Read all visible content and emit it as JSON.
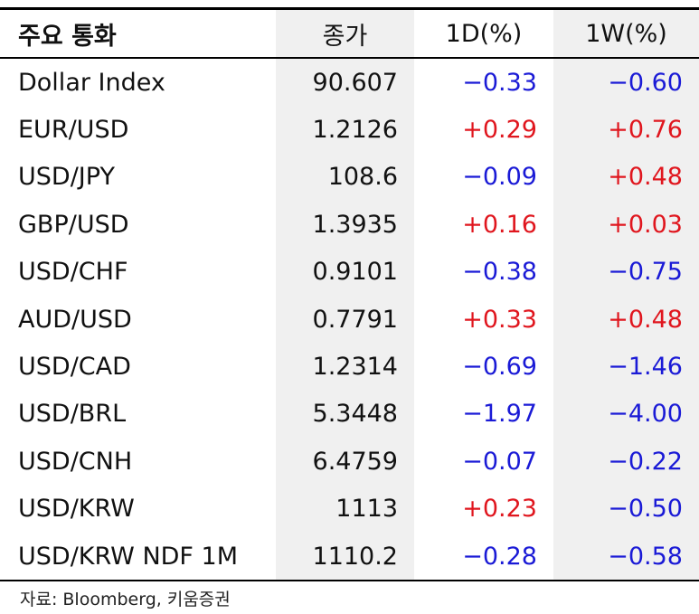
{
  "table": {
    "header": [
      "주요 통화",
      "종가",
      "1D(%)",
      "1W(%)"
    ],
    "rows": [
      [
        "Dollar Index",
        "90.607",
        "−0.33",
        "−0.60"
      ],
      [
        "EUR/USD",
        "1.2126",
        "+0.29",
        "+0.76"
      ],
      [
        "USD/JPY",
        "108.6",
        "−0.09",
        "+0.48"
      ],
      [
        "GBP/USD",
        "1.3935",
        "+0.16",
        "+0.03"
      ],
      [
        "USD/CHF",
        "0.9101",
        "−0.38",
        "−0.75"
      ],
      [
        "AUD/USD",
        "0.7791",
        "+0.33",
        "+0.48"
      ],
      [
        "USD/CAD",
        "1.2314",
        "−0.69",
        "−1.46"
      ],
      [
        "USD/BRL",
        "5.3448",
        "−1.97",
        "−4.00"
      ],
      [
        "USD/CNH",
        "6.4759",
        "−0.07",
        "−0.22"
      ],
      [
        "USD/KRW",
        "1113",
        "+0.23",
        "−0.50"
      ],
      [
        "USD/KRW NDF 1M",
        "1110.2",
        "−0.28",
        "−0.58"
      ]
    ]
  },
  "source": "자료: Bloomberg, 키움증권"
}
